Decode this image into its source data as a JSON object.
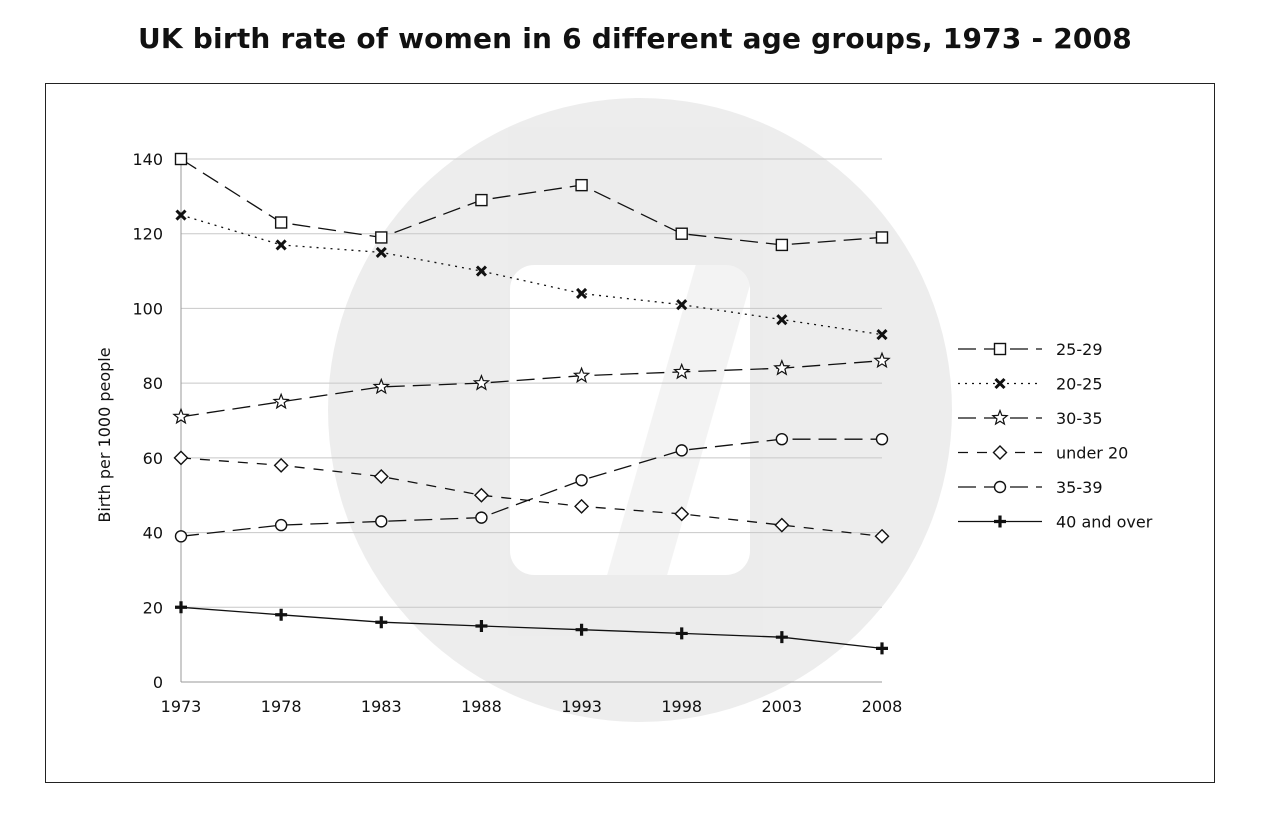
{
  "chart_data": {
    "type": "line",
    "title": "UK birth rate of women in 6 different age groups, 1973 - 2008",
    "xlabel": "",
    "ylabel": "Birth per 1000 people",
    "x": [
      "1973",
      "1978",
      "1983",
      "1988",
      "1993",
      "1998",
      "2003",
      "2008"
    ],
    "ylim": [
      0,
      140
    ],
    "yticks": [
      0,
      20,
      40,
      60,
      80,
      100,
      120,
      140
    ],
    "grid": "horizontal",
    "legend_position": "right",
    "series": [
      {
        "name": "25-29",
        "marker": "square",
        "dash": "long-dash",
        "values": [
          140,
          123,
          119,
          129,
          133,
          120,
          117,
          119
        ]
      },
      {
        "name": "20-25",
        "marker": "x",
        "dash": "dotted",
        "values": [
          125,
          117,
          115,
          110,
          104,
          101,
          97,
          93
        ]
      },
      {
        "name": "30-35",
        "marker": "star",
        "dash": "long-dash",
        "values": [
          71,
          75,
          79,
          80,
          82,
          83,
          84,
          86
        ]
      },
      {
        "name": "under 20",
        "marker": "diamond",
        "dash": "dashed",
        "values": [
          60,
          58,
          55,
          50,
          47,
          45,
          42,
          39
        ]
      },
      {
        "name": "35-39",
        "marker": "circle",
        "dash": "long-dash",
        "values": [
          39,
          42,
          43,
          44,
          54,
          62,
          65,
          65
        ]
      },
      {
        "name": "40 and over",
        "marker": "plus",
        "dash": "solid",
        "values": [
          20,
          18,
          16,
          15,
          14,
          13,
          12,
          9
        ]
      }
    ]
  }
}
